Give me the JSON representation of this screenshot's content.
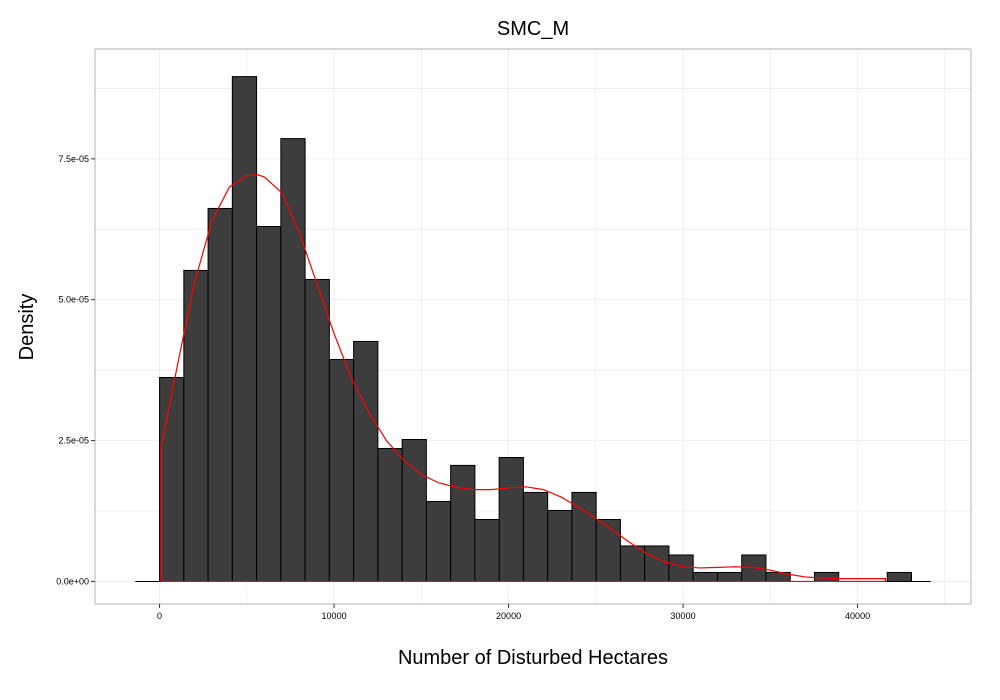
{
  "chart_data": {
    "type": "bar",
    "subtype": "histogram-with-density-curve",
    "title": "SMC_M",
    "xlabel": "Number of Disturbed Hectares",
    "ylabel": "Density",
    "xlim": [
      -3700,
      46500
    ],
    "ylim": [
      -4e-06,
      9.45e-05
    ],
    "x_ticks": [
      {
        "value": 0,
        "label": "0"
      },
      {
        "value": 10000,
        "label": "10000"
      },
      {
        "value": 20000,
        "label": "20000"
      },
      {
        "value": 30000,
        "label": "30000"
      },
      {
        "value": 40000,
        "label": "40000"
      }
    ],
    "y_ticks": [
      {
        "value": 0,
        "label": "0.0e+00"
      },
      {
        "value": 2.5e-05,
        "label": "2.5e-05"
      },
      {
        "value": 5e-05,
        "label": "5.0e-05"
      },
      {
        "value": 7.5e-05,
        "label": "7.5e-05"
      }
    ],
    "grid": true,
    "legend": "none",
    "bin_width": 1390,
    "baseline_x": [
      -1390,
      44200
    ],
    "bins": [
      {
        "start": 0,
        "value": 3.62e-05
      },
      {
        "start": 1390,
        "value": 5.52e-05
      },
      {
        "start": 2780,
        "value": 6.62e-05
      },
      {
        "start": 4170,
        "value": 8.96e-05
      },
      {
        "start": 5560,
        "value": 6.3e-05
      },
      {
        "start": 6950,
        "value": 7.86e-05
      },
      {
        "start": 8340,
        "value": 5.36e-05
      },
      {
        "start": 9730,
        "value": 3.94e-05
      },
      {
        "start": 11120,
        "value": 4.26e-05
      },
      {
        "start": 12510,
        "value": 2.36e-05
      },
      {
        "start": 13900,
        "value": 2.52e-05
      },
      {
        "start": 15290,
        "value": 1.42e-05
      },
      {
        "start": 16680,
        "value": 2.06e-05
      },
      {
        "start": 18070,
        "value": 1.1e-05
      },
      {
        "start": 19460,
        "value": 2.2e-05
      },
      {
        "start": 20850,
        "value": 1.58e-05
      },
      {
        "start": 22240,
        "value": 1.26e-05
      },
      {
        "start": 23630,
        "value": 1.58e-05
      },
      {
        "start": 25020,
        "value": 1.1e-05
      },
      {
        "start": 26410,
        "value": 6.3e-06
      },
      {
        "start": 27800,
        "value": 6.3e-06
      },
      {
        "start": 29190,
        "value": 4.7e-06
      },
      {
        "start": 30580,
        "value": 1.6e-06
      },
      {
        "start": 31970,
        "value": 1.6e-06
      },
      {
        "start": 33360,
        "value": 4.7e-06
      },
      {
        "start": 34750,
        "value": 1.6e-06
      },
      {
        "start": 36140,
        "value": 0.0
      },
      {
        "start": 37530,
        "value": 1.6e-06
      },
      {
        "start": 38920,
        "value": 0.0
      },
      {
        "start": 40310,
        "value": 0.0
      },
      {
        "start": 41700,
        "value": 1.6e-06
      }
    ],
    "density_curve": {
      "color": "#ff0000",
      "x": [
        100,
        1000,
        2000,
        3000,
        4000,
        5000,
        5600,
        6000,
        7000,
        8000,
        9000,
        10000,
        11000,
        12000,
        13000,
        14000,
        15000,
        16000,
        17000,
        18000,
        19000,
        20000,
        21000,
        22000,
        23000,
        24000,
        25000,
        26000,
        27000,
        28000,
        29000,
        30000,
        31000,
        32000,
        33000,
        34000,
        35000,
        36000,
        37000,
        38000,
        39000,
        40000,
        41000,
        41600
      ],
      "y": [
        2.4e-05,
        3.8e-05,
        5.3e-05,
        6.4e-05,
        7e-05,
        7.2e-05,
        7.22e-05,
        7.18e-05,
        6.9e-05,
        6.2e-05,
        5.3e-05,
        4.4e-05,
        3.6e-05,
        3e-05,
        2.5e-05,
        2.15e-05,
        1.9e-05,
        1.75e-05,
        1.67e-05,
        1.63e-05,
        1.63e-05,
        1.66e-05,
        1.68e-05,
        1.63e-05,
        1.5e-05,
        1.32e-05,
        1.12e-05,
        9e-06,
        6.8e-06,
        4.8e-06,
        3.4e-06,
        2.6e-06,
        2.4e-06,
        2.5e-06,
        2.6e-06,
        2.5e-06,
        2e-06,
        1.3e-06,
        8e-07,
        6e-07,
        5e-07,
        5e-07,
        5e-07,
        5e-07
      ]
    },
    "colors": {
      "bar_fill": "#3d3d3d",
      "bar_outline": "#000000",
      "grid": "#ececec",
      "panel_border": "#b3b3b3"
    }
  }
}
